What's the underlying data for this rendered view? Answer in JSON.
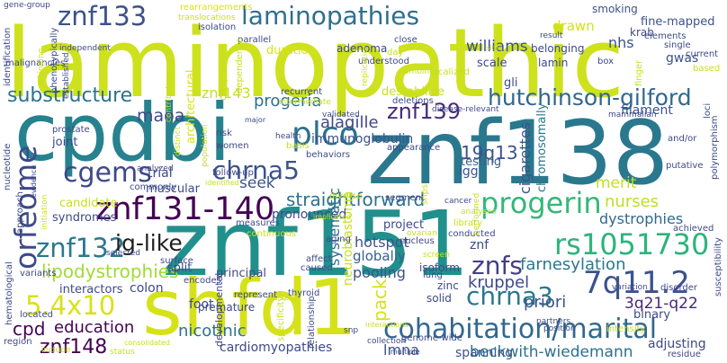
{
  "words": [
    {
      "text": "laminopathic",
      "color": "#cde11d"
    },
    {
      "text": "znf138",
      "color": "#2a788e"
    },
    {
      "text": "znf151",
      "color": "#21908d"
    },
    {
      "text": "cpdbi",
      "color": "#26828e"
    },
    {
      "text": "shfd1",
      "color": "#d5e21a"
    },
    {
      "text": "znf133",
      "color": "#3b528b"
    },
    {
      "text": "laminopathies",
      "color": "#2d708e"
    },
    {
      "text": "orfeome",
      "color": "#3e4989"
    },
    {
      "text": "znf131-140",
      "color": "#440154"
    },
    {
      "text": "cohabitation/marital",
      "color": "#31688e"
    },
    {
      "text": "hutchinson-gilford",
      "color": "#31688e"
    },
    {
      "text": "progerin",
      "color": "#35b779"
    },
    {
      "text": "rs1051730",
      "color": "#2eb37c"
    },
    {
      "text": "chrna5",
      "color": "#3b528b"
    },
    {
      "text": "chrna3",
      "color": "#2a788e"
    },
    {
      "text": "cgems",
      "color": "#3e4989"
    },
    {
      "text": "plco",
      "color": "#2c728e"
    },
    {
      "text": "znf139",
      "color": "#472c7a"
    },
    {
      "text": "znf132",
      "color": "#2a788e"
    },
    {
      "text": "substructure",
      "color": "#2c728e"
    },
    {
      "text": "7q11.2",
      "color": "#3b528b"
    },
    {
      "text": "5.4x10",
      "color": "#d8e219"
    },
    {
      "text": "znfs",
      "color": "#433e85"
    },
    {
      "text": "ig-like",
      "color": "#1f1f1f"
    },
    {
      "text": "lipodystrophies",
      "color": "#a2da37"
    },
    {
      "text": "beckwith-wiedemann",
      "color": "#2d708e"
    },
    {
      "text": "cpd",
      "color": "#440154"
    },
    {
      "text": "education",
      "color": "#440154"
    },
    {
      "text": "znf148",
      "color": "#440154"
    },
    {
      "text": "nicotinic",
      "color": "#2d708e"
    },
    {
      "text": "straightforward",
      "color": "#2c728e"
    },
    {
      "text": "progeria",
      "color": "#2c728e"
    },
    {
      "text": "maoa",
      "color": "#3e4989"
    },
    {
      "text": "alagille",
      "color": "#3e4989"
    },
    {
      "text": "znf143",
      "color": "#c8e020"
    },
    {
      "text": "williams",
      "color": "#3b528b"
    },
    {
      "text": "farnesylation",
      "color": "#2a788e"
    },
    {
      "text": "kruppel",
      "color": "#3e4989"
    },
    {
      "text": "priori",
      "color": "#3b528b"
    },
    {
      "text": "3q21-q22",
      "color": "#482878"
    },
    {
      "text": "lmna",
      "color": "#3b528b"
    },
    {
      "text": "cardiomyopathies",
      "color": "#3e4989"
    },
    {
      "text": "spanning",
      "color": "#3b528b"
    },
    {
      "text": "adjusting",
      "color": "#3e4989"
    },
    {
      "text": "merit",
      "color": "#c2df23"
    },
    {
      "text": "nurses",
      "color": "#bddf26"
    },
    {
      "text": "dystrophies",
      "color": "#31688e"
    },
    {
      "text": "19q13",
      "color": "#3b528b"
    },
    {
      "text": "igg",
      "color": "#3b528b"
    },
    {
      "text": "testing",
      "color": "#35608d"
    },
    {
      "text": "cigarettes",
      "color": "#3b528b"
    },
    {
      "text": "chromosomally",
      "color": "#2a788e"
    },
    {
      "text": "hotspot",
      "color": "#3b528b"
    },
    {
      "text": "pooling",
      "color": "#3b528b"
    },
    {
      "text": "globally",
      "color": "#35608d"
    },
    {
      "text": "systematic",
      "color": "#2c728e"
    },
    {
      "text": "pack",
      "color": "#d5e21a"
    },
    {
      "text": "neuroblastoma",
      "color": "#c8e020"
    },
    {
      "text": "seek",
      "color": "#3b528b"
    },
    {
      "text": "pronounced",
      "color": "#3e4989"
    },
    {
      "text": "immunoglobulin",
      "color": "#3b528b"
    },
    {
      "text": "muscular",
      "color": "#3e4989"
    },
    {
      "text": "trial",
      "color": "#3e4989"
    },
    {
      "text": "split",
      "color": "#3e4989"
    },
    {
      "text": "colon",
      "color": "#3e4989"
    },
    {
      "text": "interactors",
      "color": "#3e4989"
    },
    {
      "text": "candidate",
      "color": "#c8e020"
    },
    {
      "text": "syndromes",
      "color": "#3e4989"
    },
    {
      "text": "joint",
      "color": "#3e4989"
    },
    {
      "text": "architectural",
      "color": "#d8e219"
    },
    {
      "text": "destabilize",
      "color": "#c8e020"
    },
    {
      "text": "filament",
      "color": "#3b528b"
    },
    {
      "text": "fine-mapped",
      "color": "#3b528b"
    },
    {
      "text": "nhs",
      "color": "#3b528b"
    },
    {
      "text": "gwas",
      "color": "#3b528b"
    },
    {
      "text": "smoking",
      "color": "#3b528b"
    },
    {
      "text": "drawn",
      "color": "#d5e21a"
    },
    {
      "text": "adenoma",
      "color": "#3e4989"
    },
    {
      "text": "scale",
      "color": "#3e4989"
    },
    {
      "text": "duration",
      "color": "#d8e219"
    },
    {
      "text": "belonging",
      "color": "#3e4989"
    },
    {
      "text": "lamin",
      "color": "#3e4989"
    },
    {
      "text": "gli",
      "color": "#3e4989"
    },
    {
      "text": "krab",
      "color": "#3e4989"
    },
    {
      "text": "zinc",
      "color": "#3e4989"
    },
    {
      "text": "znf",
      "color": "#3e4989"
    },
    {
      "text": "project",
      "color": "#3e4989"
    },
    {
      "text": "solid",
      "color": "#3e4989"
    },
    {
      "text": "isoform",
      "color": "#3e4989"
    },
    {
      "text": "binary",
      "color": "#3e4989"
    },
    {
      "text": "foot",
      "color": "#3e4989"
    },
    {
      "text": "principal",
      "color": "#3e4989"
    },
    {
      "text": "premature",
      "color": "#3e4989"
    },
    {
      "text": "developmental",
      "color": "#3e4989"
    },
    {
      "text": "rearrangements",
      "color": "#d8e219"
    },
    {
      "text": "translocations",
      "color": "#c8e020"
    },
    {
      "text": "isolation",
      "color": "#3e4989"
    },
    {
      "text": "parallel",
      "color": "#3e4989"
    },
    {
      "text": "understood",
      "color": "#3e4989"
    },
    {
      "text": "close",
      "color": "#3e4989"
    },
    {
      "text": "result",
      "color": "#3e4989"
    },
    {
      "text": "box",
      "color": "#3e4989"
    },
    {
      "text": "elements",
      "color": "#3e4989"
    },
    {
      "text": "single",
      "color": "#3e4989"
    },
    {
      "text": "current",
      "color": "#3e4989"
    },
    {
      "text": "based",
      "color": "#c8e020"
    },
    {
      "text": "finger",
      "color": "#c8e020"
    },
    {
      "text": "gene-group",
      "color": "#3e4989"
    },
    {
      "text": "identification",
      "color": "#3e4989"
    },
    {
      "text": "malignancies",
      "color": "#3e4989"
    },
    {
      "text": "independent",
      "color": "#3e4989"
    },
    {
      "text": "established",
      "color": "#3e4989"
    },
    {
      "text": "phenotypically",
      "color": "#3e4989"
    },
    {
      "text": "a-binding",
      "color": "#c8e020"
    },
    {
      "text": "component",
      "color": "#c8e020"
    },
    {
      "text": "dependence",
      "color": "#c8e020"
    },
    {
      "text": "day",
      "color": "#c8e020"
    },
    {
      "text": "localized",
      "color": "#c8e020"
    },
    {
      "text": "sites",
      "color": "#c8e020"
    },
    {
      "text": "recurrent",
      "color": "#3e4989"
    },
    {
      "text": "intermediate",
      "color": "#c8e020"
    },
    {
      "text": "contribution",
      "color": "#c8e020"
    },
    {
      "text": "combined",
      "color": "#c8e020"
    },
    {
      "text": "deletions",
      "color": "#3e4989"
    },
    {
      "text": "validated",
      "color": "#3e4989"
    },
    {
      "text": "disease-relevant",
      "color": "#3e4989"
    },
    {
      "text": "mammalian",
      "color": "#3e4989"
    },
    {
      "text": "loci",
      "color": "#3e4989"
    },
    {
      "text": "polymorphism",
      "color": "#3e4989"
    },
    {
      "text": "susceptibility",
      "color": "#3e4989"
    },
    {
      "text": "and/or",
      "color": "#3e4989"
    },
    {
      "text": "putative",
      "color": "#3e4989"
    },
    {
      "text": "achieved",
      "color": "#3e4989"
    },
    {
      "text": "variation",
      "color": "#3e4989"
    },
    {
      "text": "disorder",
      "color": "#3e4989"
    },
    {
      "text": "partners",
      "color": "#3e4989"
    },
    {
      "text": "position",
      "color": "#3e4989"
    },
    {
      "text": "intensity",
      "color": "#c8e020"
    },
    {
      "text": "residue",
      "color": "#3e4989"
    },
    {
      "text": "genome-wide",
      "color": "#3e4989"
    },
    {
      "text": "collection",
      "color": "#3e4989"
    },
    {
      "text": "multiple",
      "color": "#3e4989"
    },
    {
      "text": "interactions",
      "color": "#c8e020"
    },
    {
      "text": "snp",
      "color": "#3e4989"
    },
    {
      "text": "relationship",
      "color": "#3e4989"
    },
    {
      "text": "specificity",
      "color": "#c8e020"
    },
    {
      "text": "thyroid",
      "color": "#3e4989"
    },
    {
      "text": "markers",
      "color": "#c8e020"
    },
    {
      "text": "represent",
      "color": "#3e4989"
    },
    {
      "text": "caused",
      "color": "#3e4989"
    },
    {
      "text": "affect",
      "color": "#3e4989"
    },
    {
      "text": "nucleus",
      "color": "#3e4989"
    },
    {
      "text": "ovarian",
      "color": "#c8e020"
    },
    {
      "text": "lung",
      "color": "#3e4989"
    },
    {
      "text": "screen",
      "color": "#c8e020"
    },
    {
      "text": "library",
      "color": "#c8e020"
    },
    {
      "text": "conducted",
      "color": "#3e4989"
    },
    {
      "text": "analyses",
      "color": "#c8e020"
    },
    {
      "text": "performed",
      "color": "#c8e020"
    },
    {
      "text": "cancer",
      "color": "#3e4989"
    },
    {
      "text": "segment",
      "color": "#3e4989"
    },
    {
      "text": "snps",
      "color": "#c8e020"
    },
    {
      "text": "diverse",
      "color": "#c8e020"
    },
    {
      "text": "implicated",
      "color": "#c8e020"
    },
    {
      "text": "aging",
      "color": "#3e4989"
    },
    {
      "text": "continuous",
      "color": "#c8e020"
    },
    {
      "text": "measures",
      "color": "#3e4989"
    },
    {
      "text": "follow-up",
      "color": "#3e4989"
    },
    {
      "text": "women",
      "color": "#3e4989"
    },
    {
      "text": "risk",
      "color": "#3e4989"
    },
    {
      "text": "health",
      "color": "#3e4989"
    },
    {
      "text": "basis",
      "color": "#c8e020"
    },
    {
      "text": "behaviors",
      "color": "#3e4989"
    },
    {
      "text": "appearance",
      "color": "#3e4989"
    },
    {
      "text": "major",
      "color": "#3e4989"
    },
    {
      "text": "population",
      "color": "#c8e020"
    },
    {
      "text": "distinct",
      "color": "#c8e020"
    },
    {
      "text": "commonly",
      "color": "#3e4989"
    },
    {
      "text": "identified",
      "color": "#c8e020"
    },
    {
      "text": "analyzed",
      "color": "#3e4989"
    },
    {
      "text": "prostate",
      "color": "#3e4989"
    },
    {
      "text": "nucleotide",
      "color": "#3e4989"
    },
    {
      "text": "approach",
      "color": "#3e4989"
    },
    {
      "text": "evidence",
      "color": "#3e4989"
    },
    {
      "text": "initiation",
      "color": "#c8e020"
    },
    {
      "text": "selected",
      "color": "#3e4989"
    },
    {
      "text": "surface",
      "color": "#3e4989"
    },
    {
      "text": "encodes",
      "color": "#3e4989"
    },
    {
      "text": "hematological",
      "color": "#3e4989"
    },
    {
      "text": "variants",
      "color": "#3e4989"
    },
    {
      "text": "located",
      "color": "#3e4989"
    },
    {
      "text": "region",
      "color": "#3e4989"
    },
    {
      "text": "include",
      "color": "#c8e020"
    },
    {
      "text": "status",
      "color": "#c8e020"
    },
    {
      "text": "consolidated",
      "color": "#c8e020"
    },
    {
      "text": "replication",
      "color": "#c8e020"
    }
  ]
}
